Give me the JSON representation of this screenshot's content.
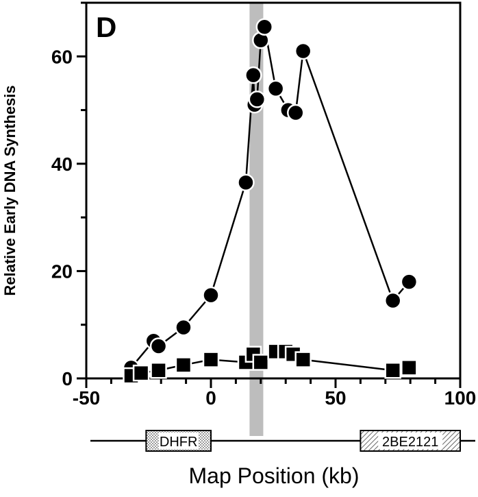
{
  "chart_data": {
    "type": "line",
    "panel_label": "D",
    "xlabel": "Map Position (kb)",
    "ylabel": "Relative Early DNA Synthesis",
    "xlim": [
      -50,
      100
    ],
    "ylim": [
      0,
      70
    ],
    "x_ticks": [
      -50,
      0,
      50,
      100
    ],
    "y_ticks": [
      0,
      20,
      40,
      60
    ],
    "grid": false,
    "highlight_band": {
      "x_start": 15.5,
      "x_end": 21,
      "color": "#bdbdbd"
    },
    "series": [
      {
        "marker": "circle",
        "color": "#000000",
        "points": [
          [
            -32,
            2
          ],
          [
            -23,
            7
          ],
          [
            -21,
            6
          ],
          [
            -11,
            9.5
          ],
          [
            0,
            15.5
          ],
          [
            14,
            36.5
          ],
          [
            17,
            56.5
          ],
          [
            17.5,
            51
          ],
          [
            18.5,
            52
          ],
          [
            20,
            63
          ],
          [
            21.5,
            65.5
          ],
          [
            26,
            54
          ],
          [
            31,
            50
          ],
          [
            34,
            49.5
          ],
          [
            37,
            61
          ],
          [
            73,
            14.5
          ],
          [
            79.5,
            18
          ]
        ]
      },
      {
        "marker": "square",
        "color": "#000000",
        "points": [
          [
            -32,
            0.5
          ],
          [
            -28,
            1
          ],
          [
            -21,
            1.5
          ],
          [
            -11,
            2.5
          ],
          [
            0,
            3.5
          ],
          [
            14,
            3
          ],
          [
            17,
            4.5
          ],
          [
            20,
            3
          ],
          [
            26,
            5
          ],
          [
            30,
            5
          ],
          [
            33,
            4.5
          ],
          [
            37,
            3.5
          ],
          [
            73,
            1.5
          ],
          [
            79.5,
            2
          ]
        ]
      }
    ],
    "gene_map": {
      "genes": [
        {
          "label": "DHFR",
          "x_start": -26,
          "x_end": 0,
          "pattern": "dots"
        },
        {
          "label": "2BE2121",
          "x_start": 60,
          "x_end": 100,
          "pattern": "hatch"
        }
      ]
    }
  }
}
